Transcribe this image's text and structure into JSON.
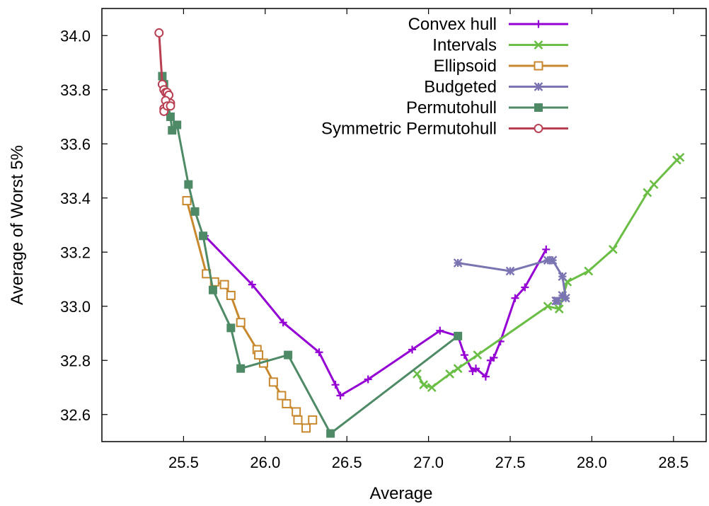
{
  "chart_data": {
    "type": "line",
    "xlabel": "Average",
    "ylabel": "Average of Worst 5%",
    "xlim": [
      25.0,
      28.7
    ],
    "ylim": [
      32.5,
      34.1
    ],
    "xticks": [
      25.5,
      26.0,
      26.5,
      27.0,
      27.5,
      28.0,
      28.5
    ],
    "yticks": [
      32.6,
      32.8,
      33.0,
      33.2,
      33.4,
      33.6,
      33.8,
      34.0
    ],
    "xtick_labels": [
      "25.5",
      "26.0",
      "26.5",
      "27.0",
      "27.5",
      "28.0",
      "28.5"
    ],
    "ytick_labels": [
      "32.6",
      "32.8",
      "33.0",
      "33.2",
      "33.4",
      "33.6",
      "33.8",
      "34.0"
    ],
    "grid": false,
    "legend_position": "top-right",
    "series": [
      {
        "name": "Convex hull",
        "color": "#9400d3",
        "marker": "plus",
        "x": [
          25.63,
          25.92,
          26.11,
          26.33,
          26.43,
          26.46,
          26.63,
          26.9,
          27.07,
          27.18,
          27.22,
          27.27,
          27.29,
          27.35,
          27.38,
          27.4,
          27.44,
          27.53,
          27.59,
          27.72
        ],
        "y": [
          33.26,
          33.08,
          32.94,
          32.83,
          32.71,
          32.67,
          32.73,
          32.84,
          32.91,
          32.89,
          32.82,
          32.76,
          32.77,
          32.74,
          32.8,
          32.81,
          32.87,
          33.03,
          33.07,
          33.21
        ]
      },
      {
        "name": "Intervals",
        "color": "#6abe45",
        "marker": "x",
        "x": [
          26.93,
          26.97,
          27.02,
          27.13,
          27.18,
          27.3,
          27.73,
          27.8,
          27.85,
          27.98,
          28.13,
          28.34,
          28.38,
          28.52,
          28.54
        ],
        "y": [
          32.75,
          32.71,
          32.7,
          32.75,
          32.77,
          32.82,
          33.0,
          32.99,
          33.09,
          33.13,
          33.21,
          33.42,
          33.45,
          33.54,
          33.55
        ]
      },
      {
        "name": "Ellipsoid",
        "color": "#c8882e",
        "marker": "square",
        "x": [
          25.52,
          25.64,
          25.69,
          25.75,
          25.79,
          25.85,
          25.95,
          25.96,
          25.99,
          26.05,
          26.1,
          26.13,
          26.19,
          26.2,
          26.25,
          26.29
        ],
        "y": [
          33.39,
          33.12,
          33.09,
          33.08,
          33.04,
          32.94,
          32.84,
          32.82,
          32.79,
          32.72,
          32.67,
          32.64,
          32.61,
          32.58,
          32.55,
          32.58
        ]
      },
      {
        "name": "Budgeted",
        "color": "#7a75b2",
        "marker": "star",
        "x": [
          27.18,
          27.5,
          27.73,
          27.76,
          27.82,
          27.84,
          27.82,
          27.79,
          27.78
        ],
        "y": [
          33.16,
          33.13,
          33.17,
          33.17,
          33.11,
          33.03,
          33.04,
          33.02,
          33.02
        ]
      },
      {
        "name": "Permutohull",
        "color": "#4f8a67",
        "marker": "filled-square",
        "x": [
          25.37,
          25.38,
          25.42,
          25.43,
          25.46,
          25.53,
          25.57,
          25.62,
          25.68,
          25.79,
          25.85,
          26.14,
          26.4,
          27.18
        ],
        "y": [
          33.85,
          33.82,
          33.7,
          33.65,
          33.67,
          33.45,
          33.35,
          33.26,
          33.06,
          32.92,
          32.77,
          32.82,
          32.53,
          32.89
        ]
      },
      {
        "name": "Symmetric Permutohull",
        "color": "#b84052",
        "marker": "circle",
        "x": [
          25.35,
          25.37,
          25.38,
          25.39,
          25.4,
          25.41,
          25.42,
          25.39,
          25.38,
          25.38,
          25.4,
          25.42
        ],
        "y": [
          34.01,
          33.82,
          33.8,
          33.79,
          33.79,
          33.78,
          33.75,
          33.76,
          33.73,
          33.72,
          33.74,
          33.74
        ]
      }
    ]
  }
}
